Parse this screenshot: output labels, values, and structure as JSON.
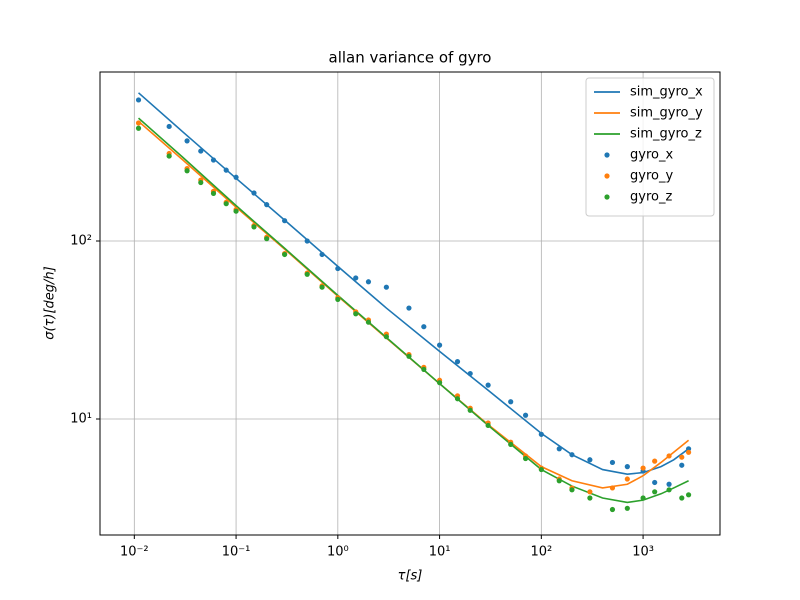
{
  "chart_data": {
    "type": "line",
    "title": "allan variance of gyro",
    "xlabel": "τ[s]",
    "ylabel": "σ(τ)[deg/h]",
    "xscale": "log",
    "yscale": "log",
    "xlim": [
      0.0046,
      5700
    ],
    "ylim": [
      2.23,
      890
    ],
    "xticks": [
      {
        "value": 0.01,
        "label": "10⁻²"
      },
      {
        "value": 0.1,
        "label": "10⁻¹"
      },
      {
        "value": 1,
        "label": "10⁰"
      },
      {
        "value": 10,
        "label": "10¹"
      },
      {
        "value": 100,
        "label": "10²"
      },
      {
        "value": 1000,
        "label": "10³"
      }
    ],
    "yticks": [
      {
        "value": 10,
        "label": "10¹"
      },
      {
        "value": 100,
        "label": "10²"
      }
    ],
    "grid": true,
    "legend": "upper right",
    "series": [
      {
        "name": "sim_gyro_x",
        "color": "#1f77b4",
        "mode": "line",
        "x": [
          0.011,
          0.03,
          0.1,
          0.3,
          1,
          3,
          10,
          30,
          100,
          200,
          400,
          700,
          1000,
          1500,
          2000,
          2800
        ],
        "values": [
          680,
          410,
          225,
          131,
          72,
          42,
          24,
          14.5,
          8.3,
          6.3,
          5.2,
          4.9,
          5.0,
          5.4,
          5.9,
          6.8
        ]
      },
      {
        "name": "sim_gyro_y",
        "color": "#ff7f0e",
        "mode": "line",
        "x": [
          0.011,
          0.03,
          0.1,
          0.3,
          1,
          3,
          10,
          30,
          100,
          200,
          400,
          700,
          1000,
          1500,
          2000,
          2800
        ],
        "values": [
          470,
          285,
          155,
          90,
          49,
          28.5,
          15.8,
          9.3,
          5.4,
          4.5,
          4.1,
          4.3,
          4.8,
          5.7,
          6.5,
          7.6
        ]
      },
      {
        "name": "sim_gyro_z",
        "color": "#2ca02c",
        "mode": "line",
        "x": [
          0.011,
          0.03,
          0.1,
          0.3,
          1,
          3,
          10,
          30,
          100,
          200,
          400,
          700,
          1000,
          1500,
          2000,
          2800
        ],
        "values": [
          490,
          295,
          158,
          91,
          49.5,
          28.7,
          15.8,
          9.2,
          5.2,
          4.2,
          3.6,
          3.4,
          3.5,
          3.8,
          4.1,
          4.5
        ]
      },
      {
        "name": "gyro_x",
        "color": "#1f77b4",
        "mode": "markers",
        "x": [
          0.011,
          0.022,
          0.033,
          0.045,
          0.06,
          0.08,
          0.1,
          0.15,
          0.2,
          0.3,
          0.5,
          0.7,
          1,
          1.5,
          2,
          3,
          5,
          7,
          10,
          15,
          20,
          30,
          50,
          70,
          100,
          150,
          200,
          300,
          500,
          700,
          1000,
          1300,
          1800,
          2400,
          2800
        ],
        "values": [
          620,
          440,
          365,
          320,
          285,
          250,
          228,
          186,
          160,
          130,
          100,
          84,
          70,
          62,
          59,
          55,
          42,
          33,
          26,
          21,
          18,
          15.5,
          12.5,
          10.5,
          8.2,
          6.8,
          6.3,
          5.9,
          5.7,
          5.4,
          5.1,
          4.4,
          4.3,
          5.5,
          6.8
        ]
      },
      {
        "name": "gyro_y",
        "color": "#ff7f0e",
        "mode": "markers",
        "x": [
          0.011,
          0.022,
          0.033,
          0.045,
          0.06,
          0.08,
          0.1,
          0.15,
          0.2,
          0.3,
          0.5,
          0.7,
          1,
          1.5,
          2,
          3,
          5,
          7,
          10,
          15,
          20,
          30,
          50,
          70,
          100,
          150,
          200,
          300,
          500,
          700,
          1000,
          1300,
          1800,
          2400,
          2800
        ],
        "values": [
          460,
          310,
          255,
          220,
          190,
          165,
          150,
          122,
          105,
          85,
          66,
          56,
          48,
          40,
          36,
          30,
          23,
          19.5,
          16.5,
          13.5,
          11.5,
          9.5,
          7.4,
          6.2,
          5.3,
          4.6,
          4.1,
          3.9,
          4.1,
          4.6,
          5.3,
          5.8,
          6.2,
          6.1,
          6.5
        ]
      },
      {
        "name": "gyro_z",
        "color": "#2ca02c",
        "mode": "markers",
        "x": [
          0.011,
          0.022,
          0.033,
          0.045,
          0.06,
          0.08,
          0.1,
          0.15,
          0.2,
          0.3,
          0.5,
          0.7,
          1,
          1.5,
          2,
          3,
          5,
          7,
          10,
          15,
          20,
          30,
          50,
          70,
          100,
          150,
          200,
          300,
          500,
          700,
          1000,
          1300,
          1800,
          2400,
          2800
        ],
        "values": [
          430,
          300,
          248,
          213,
          185,
          162,
          147,
          120,
          103,
          84,
          65,
          55,
          47,
          39,
          35,
          29,
          22.5,
          19,
          16,
          13,
          11.2,
          9.2,
          7.2,
          6.0,
          5.2,
          4.5,
          4.0,
          3.6,
          3.1,
          3.15,
          3.6,
          3.9,
          4.0,
          3.6,
          3.75
        ]
      }
    ]
  }
}
